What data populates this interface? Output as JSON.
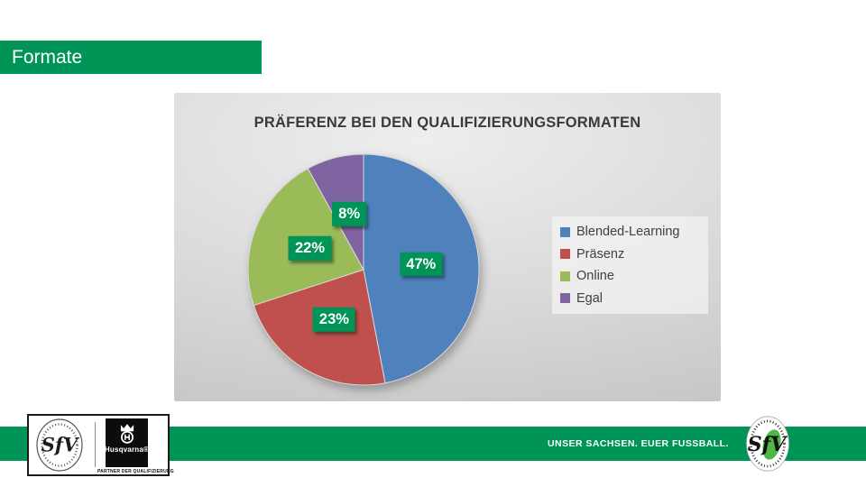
{
  "slide": {
    "title": "Formate",
    "accent_green": "#009456",
    "background": "#ffffff"
  },
  "chart_data": {
    "type": "pie",
    "title": "PRÄFERENZ BEI DEN QUALIFIZIERUNGSFORMATEN",
    "categories": [
      "Blended-Learning",
      "Präsenz",
      "Online",
      "Egal"
    ],
    "values": [
      47,
      23,
      22,
      8
    ],
    "unit": "%",
    "data_labels": [
      "47%",
      "23%",
      "22%",
      "8%"
    ],
    "colors": [
      "#4F81BD",
      "#C0504D",
      "#9BBB59",
      "#8064A2"
    ],
    "data_label_bg": "#009456",
    "data_label_text_color": "#ffffff",
    "legend_position": "right",
    "start_angle_deg": 0,
    "direction": "clockwise"
  },
  "footer": {
    "slogan": "UNSER SACHSEN. EUER FUSSBALL.",
    "sfv_seal_monogram": "SfV",
    "husqvarna_name": "Husqvarna®",
    "husqvarna_tagline": "PARTNER DER QUALIFIZIERUNG",
    "sfv_badge_monogram": "SfV",
    "sfv_badge_green": "#4db848"
  }
}
